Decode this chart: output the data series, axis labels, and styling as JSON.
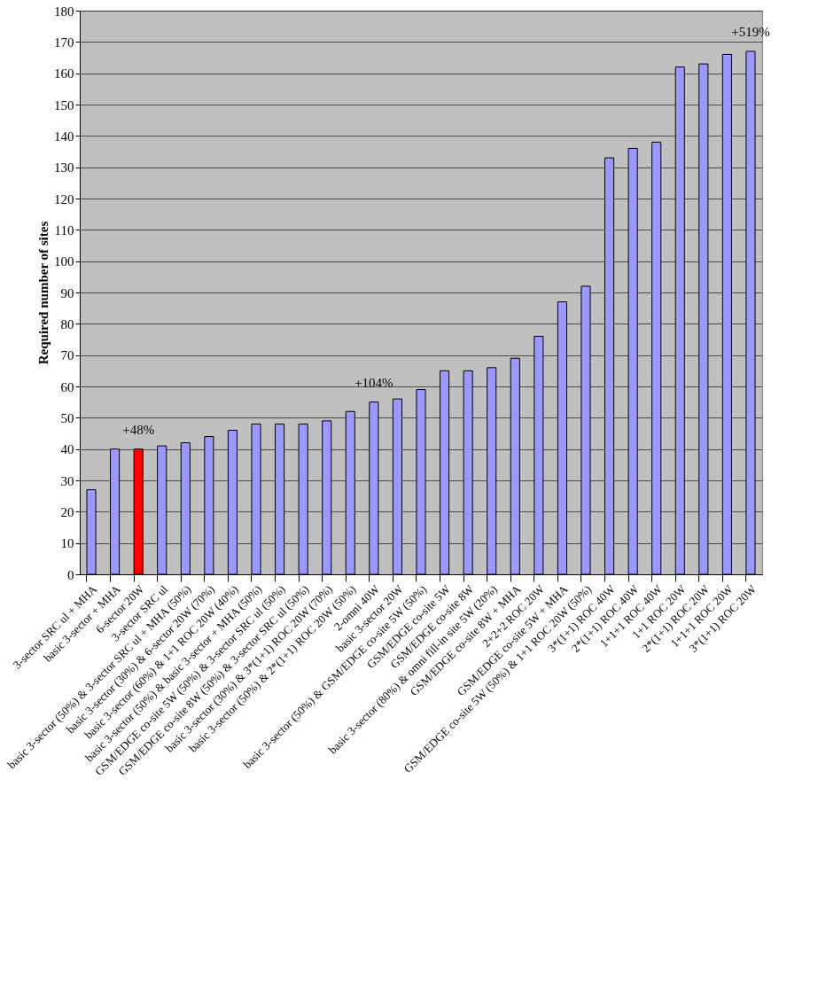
{
  "chart_data": {
    "type": "bar",
    "ylabel": "Required number of sites",
    "categories": [
      "3-sector SRC ul + MHA",
      "basic 3-sector + MHA",
      "6-sector 20W",
      "3-sector SRC ul",
      "basic 3-sector (50%) & 3-sector SRC ul + MHA (50%)",
      "basic 3-sector (30%) & 6-sector 20W (70%)",
      "basic 3-sector (60%) & 1+1 ROC 20W (40%)",
      "basic 3-sector (50%) & basic 3-sector + MHA (50%)",
      "GSM/EDGE co-site 5W (50%) & 3-sector SRC ul (50%)",
      "GSM/EDGE co-site 8W (50%) & 3-sector SRC ul (50%)",
      "basic 3-sector (30%) & 3*(1+1) ROC 20W (70%)",
      "basic 3-sector (50%) & 2*(1+1) ROC 20W (50%)",
      "2-omni 40W",
      "basic 3-sector 20W",
      "basic 3-sector (50%) & GSM/EDGE co-site 5W (50%)",
      "GSM/EDGE co-site 5W",
      "GSM/EDGE co-site 8W",
      "basic 3-sector (80%) & omni fill-in site 5W (20%)",
      "GSM/EDGE co-site 8W + MHA",
      "2+2+2 ROC 20W",
      "GSM/EDGE co-site 5W + MHA",
      "GSM/EDGE co-site 5W (50%) & 1+1 ROC 20W (50%)",
      "3*(1+1) ROC 40W",
      "2*(1+1) ROC 40W",
      "1+1+1 ROC 40W",
      "1+1 ROC 20W",
      "2*(1+1) ROC 20W",
      "1+1+1 ROC 20W",
      "3*(1+1) ROC 20W"
    ],
    "values": [
      27,
      40,
      40,
      41,
      42,
      44,
      46,
      48,
      48,
      48,
      49,
      52,
      55,
      56,
      59,
      65,
      65,
      66,
      69,
      76,
      87,
      92,
      133,
      136,
      138,
      162,
      163,
      166,
      167
    ],
    "colors": [
      "#9999ff",
      "#9999ff",
      "#ff0000",
      "#9999ff",
      "#9999ff",
      "#9999ff",
      "#9999ff",
      "#9999ff",
      "#9999ff",
      "#9999ff",
      "#9999ff",
      "#9999ff",
      "#9999ff",
      "#9999ff",
      "#9999ff",
      "#9999ff",
      "#9999ff",
      "#9999ff",
      "#9999ff",
      "#9999ff",
      "#9999ff",
      "#9999ff",
      "#9999ff",
      "#9999ff",
      "#9999ff",
      "#9999ff",
      "#9999ff",
      "#9999ff",
      "#9999ff"
    ],
    "ylim": [
      0,
      180
    ],
    "yticks": [
      0,
      10,
      20,
      30,
      40,
      50,
      60,
      70,
      80,
      90,
      100,
      110,
      120,
      130,
      140,
      150,
      160,
      170,
      180
    ],
    "grid": "y",
    "annotations": [
      {
        "text": "+48%",
        "x": "6-sector 20W",
        "y": 40
      },
      {
        "text": "+104%",
        "x": "2-omni 40W",
        "y": 55
      },
      {
        "text": "+519%",
        "x": "3*(1+1) ROC 20W",
        "y": 167
      }
    ]
  }
}
